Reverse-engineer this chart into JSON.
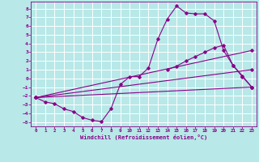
{
  "xlabel": "Windchill (Refroidissement éolien,°C)",
  "background_color": "#b8e8e8",
  "grid_color": "#c8d8d8",
  "line_color": "#880088",
  "ylim": [
    -5.5,
    8.8
  ],
  "xlim": [
    -0.5,
    23.5
  ],
  "yticks": [
    -5,
    -4,
    -3,
    -2,
    -1,
    0,
    1,
    2,
    3,
    4,
    5,
    6,
    7,
    8
  ],
  "xticks": [
    0,
    1,
    2,
    3,
    4,
    5,
    6,
    7,
    8,
    9,
    10,
    11,
    12,
    13,
    14,
    15,
    16,
    17,
    18,
    19,
    20,
    21,
    22,
    23
  ],
  "curves": [
    {
      "x": [
        0,
        1,
        2,
        3,
        4,
        5,
        6,
        7,
        8,
        9,
        10,
        11,
        12,
        13,
        14,
        15,
        16,
        17,
        18,
        19,
        20,
        21,
        22,
        23
      ],
      "y": [
        -2.2,
        -2.7,
        -2.9,
        -3.5,
        -3.8,
        -4.5,
        -4.8,
        -4.95,
        -3.5,
        -0.7,
        0.2,
        0.2,
        1.2,
        4.5,
        6.8,
        8.3,
        7.5,
        7.4,
        7.4,
        6.6,
        3.2,
        1.5,
        0.3,
        -1.0
      ]
    },
    {
      "x": [
        0,
        23
      ],
      "y": [
        -2.2,
        3.2
      ]
    },
    {
      "x": [
        0,
        23
      ],
      "y": [
        -2.2,
        1.0
      ]
    },
    {
      "x": [
        0,
        23
      ],
      "y": [
        -2.2,
        -1.0
      ]
    },
    {
      "x": [
        14,
        15,
        16,
        17,
        18,
        19,
        20,
        21,
        22,
        23
      ],
      "y": [
        1.0,
        1.4,
        2.0,
        2.5,
        3.0,
        3.5,
        3.8,
        1.5,
        0.2,
        -1.0
      ]
    }
  ]
}
